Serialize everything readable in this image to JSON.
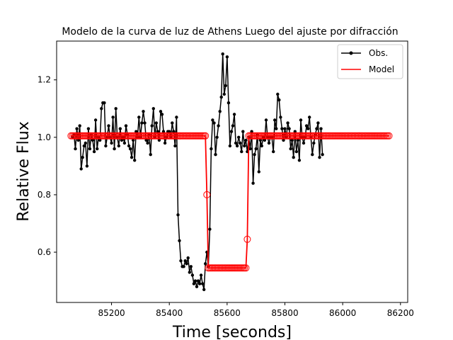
{
  "chart_data": {
    "type": "line",
    "title": "Modelo de la curva de luz de Athens Luego del ajuste por difracción",
    "xlabel": "Time [seconds]",
    "ylabel": "Relative Flux",
    "xlim": [
      85010,
      86225
    ],
    "ylim": [
      0.425,
      1.335
    ],
    "xticks": [
      85200,
      85400,
      85600,
      85800,
      86000,
      86200
    ],
    "yticks": [
      0.6,
      0.8,
      1.0,
      1.2
    ],
    "xtick_labels": [
      "85200",
      "85400",
      "85600",
      "85800",
      "86000",
      "86200"
    ],
    "ytick_labels": [
      "0.6",
      "0.8",
      "1.0",
      "1.2"
    ],
    "grid": false,
    "legend_position": "top-right",
    "observed": {
      "name": "Obs.",
      "color": "#000000",
      "x_start": 85065,
      "x_step": 5,
      "values": [
        1.0,
        1.01,
        0.96,
        1.03,
        0.99,
        1.04,
        0.89,
        0.93,
        0.97,
        0.98,
        0.9,
        1.03,
        0.96,
        1.01,
        0.99,
        0.95,
        1.06,
        0.96,
        1.0,
        0.99,
        1.1,
        1.12,
        1.12,
        0.97,
        1.0,
        1.04,
        1.0,
        0.98,
        1.07,
        0.96,
        1.1,
        1.0,
        0.97,
        1.03,
        0.99,
        1.0,
        0.98,
        1.04,
        1.01,
        0.97,
        0.96,
        0.93,
        0.99,
        0.92,
        1.02,
        1.0,
        1.07,
        1.0,
        1.05,
        1.09,
        1.05,
        0.99,
        0.98,
        1.01,
        0.94,
        1.04,
        1.1,
        1.0,
        1.05,
        1.02,
        0.99,
        1.09,
        1.08,
        1.02,
        0.98,
        1.0,
        1.02,
        1.02,
        1.0,
        1.05,
        1.02,
        0.97,
        1.07,
        0.73,
        0.64,
        0.57,
        0.55,
        0.55,
        0.57,
        0.56,
        0.58,
        0.53,
        0.55,
        0.52,
        0.49,
        0.5,
        0.48,
        0.5,
        0.49,
        0.52,
        0.49,
        0.47,
        0.56,
        0.6,
        0.55,
        0.68,
        0.96,
        1.06,
        1.05,
        0.94,
        1.0,
        1.04,
        1.09,
        1.14,
        1.29,
        1.15,
        1.18,
        1.28,
        1.12,
        0.97,
        1.02,
        1.04,
        1.08,
        0.98,
        0.97,
        1.0,
        0.98,
        0.95,
        1.02,
        0.97,
        0.99,
        0.95,
        1.0,
        0.96,
        1.02,
        0.84,
        0.94,
        0.96,
        1.01,
        0.88,
        0.99,
        0.97,
        1.0,
        0.99,
        1.06,
        1.0,
        0.98,
        1.0,
        1.0,
        0.95,
        1.06,
        1.03,
        1.15,
        1.13,
        1.07,
        1.03,
        0.99,
        1.03,
        1.0,
        1.05,
        1.03,
        0.96,
        0.99,
        0.93,
        1.02,
        0.95,
        0.99,
        0.92,
        1.06,
        1.0,
        0.98,
        1.0,
        1.04,
        1.03,
        1.07,
        1.0,
        0.94,
        0.98,
        1.01,
        1.03,
        1.05,
        0.93,
        1.03,
        0.94
      ]
    },
    "model": {
      "name": "Model",
      "color": "#ff0000",
      "x": [
        85060,
        85525,
        85530,
        85535,
        85540,
        85665,
        85670,
        85675,
        86160
      ],
      "y": [
        1.005,
        1.005,
        0.8,
        0.545,
        0.545,
        0.545,
        0.645,
        1.005,
        1.005
      ],
      "marker_step": 5
    }
  }
}
